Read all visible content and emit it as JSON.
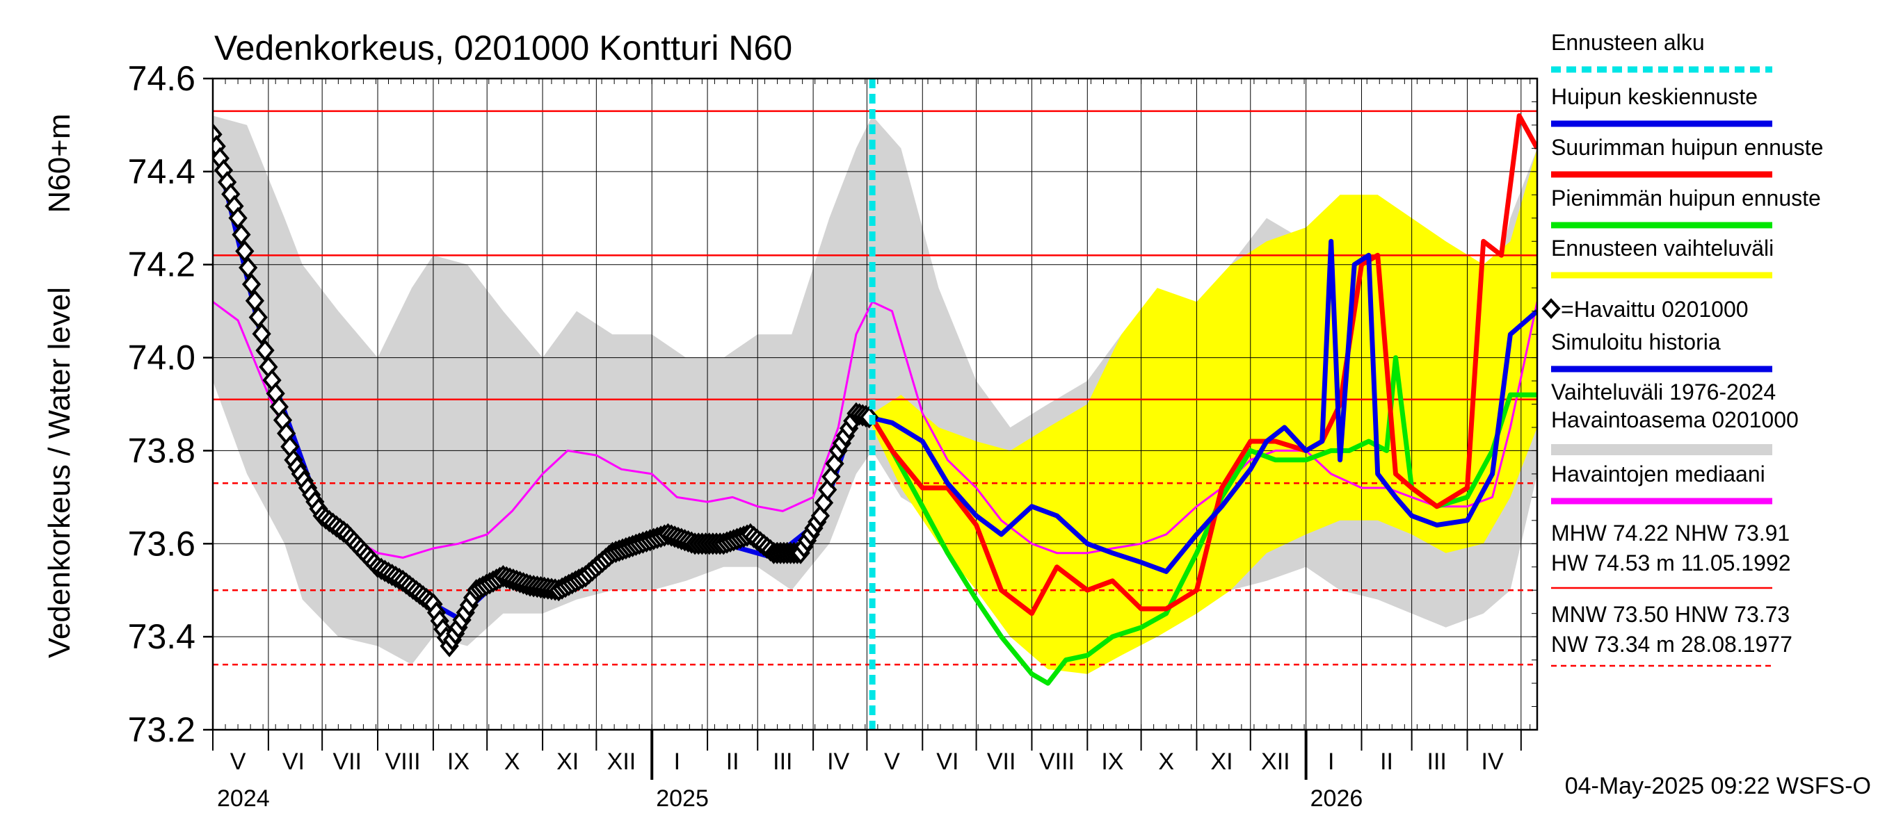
{
  "chart_data": {
    "type": "line",
    "title": "Vedenkorkeus, 0201000 Kontturi N60",
    "ylabel_main": "Vedenkorkeus / Water level",
    "ylabel_unit": "N60+m",
    "ylim": [
      73.2,
      74.6
    ],
    "yticks": [
      "73.2",
      "73.4",
      "73.6",
      "73.8",
      "74.0",
      "74.2",
      "74.4",
      "74.6"
    ],
    "x_range": [
      "2024-05-01",
      "2026-05-10"
    ],
    "month_labels": [
      {
        "label": "V",
        "date": "2024-05-15"
      },
      {
        "label": "VI",
        "date": "2024-06-15"
      },
      {
        "label": "VII",
        "date": "2024-07-15"
      },
      {
        "label": "VIII",
        "date": "2024-08-15"
      },
      {
        "label": "IX",
        "date": "2024-09-15"
      },
      {
        "label": "X",
        "date": "2024-10-15"
      },
      {
        "label": "XI",
        "date": "2024-11-15"
      },
      {
        "label": "XII",
        "date": "2024-12-15"
      },
      {
        "label": "I",
        "date": "2025-01-15"
      },
      {
        "label": "II",
        "date": "2025-02-15"
      },
      {
        "label": "III",
        "date": "2025-03-15"
      },
      {
        "label": "IV",
        "date": "2025-04-15"
      },
      {
        "label": "V",
        "date": "2025-05-15"
      },
      {
        "label": "VI",
        "date": "2025-06-15"
      },
      {
        "label": "VII",
        "date": "2025-07-15"
      },
      {
        "label": "VIII",
        "date": "2025-08-15"
      },
      {
        "label": "IX",
        "date": "2025-09-15"
      },
      {
        "label": "X",
        "date": "2025-10-15"
      },
      {
        "label": "XI",
        "date": "2025-11-15"
      },
      {
        "label": "XII",
        "date": "2025-12-15"
      },
      {
        "label": "I",
        "date": "2026-01-15"
      },
      {
        "label": "II",
        "date": "2026-02-15"
      },
      {
        "label": "III",
        "date": "2026-03-15"
      },
      {
        "label": "IV",
        "date": "2026-04-15"
      }
    ],
    "year_labels": [
      {
        "label": "2024",
        "date": "2024-05-01"
      },
      {
        "label": "2025",
        "date": "2025-01-01"
      },
      {
        "label": "2026",
        "date": "2026-01-01"
      }
    ],
    "forecast_start": "2025-05-04",
    "reference_lines": [
      {
        "name": "HW",
        "value": 74.53,
        "style": "solid"
      },
      {
        "name": "MHW",
        "value": 74.22,
        "style": "solid"
      },
      {
        "name": "NHW",
        "value": 73.91,
        "style": "solid"
      },
      {
        "name": "HNW",
        "value": 73.73,
        "style": "dashed"
      },
      {
        "name": "MNW",
        "value": 73.5,
        "style": "dashed"
      },
      {
        "name": "NW",
        "value": 73.34,
        "style": "dashed"
      }
    ],
    "history_band": {
      "x": [
        "2024-05-01",
        "2024-05-20",
        "2024-06-10",
        "2024-06-20",
        "2024-07-10",
        "2024-08-01",
        "2024-08-20",
        "2024-09-01",
        "2024-09-20",
        "2024-10-10",
        "2024-11-01",
        "2024-11-20",
        "2024-12-10",
        "2025-01-01",
        "2025-01-20",
        "2025-02-10",
        "2025-03-01",
        "2025-03-20",
        "2025-04-10",
        "2025-04-25",
        "2025-05-04",
        "2025-05-20",
        "2025-06-10",
        "2025-07-01",
        "2025-07-20",
        "2025-08-10",
        "2025-09-01",
        "2025-09-20",
        "2025-10-10",
        "2025-11-01",
        "2025-11-20",
        "2025-12-10",
        "2026-01-01",
        "2026-01-20",
        "2026-02-10",
        "2026-03-01",
        "2026-03-20",
        "2026-04-10",
        "2026-04-25",
        "2026-05-10"
      ],
      "low": [
        73.95,
        73.75,
        73.6,
        73.48,
        73.4,
        73.38,
        73.34,
        73.4,
        73.38,
        73.45,
        73.45,
        73.48,
        73.5,
        73.5,
        73.52,
        73.55,
        73.55,
        73.5,
        73.6,
        73.75,
        73.8,
        73.7,
        73.65,
        73.6,
        73.55,
        73.5,
        73.48,
        73.45,
        73.45,
        73.48,
        73.5,
        73.52,
        73.55,
        73.5,
        73.48,
        73.45,
        73.42,
        73.45,
        73.5,
        73.75
      ],
      "high": [
        74.52,
        74.5,
        74.3,
        74.2,
        74.1,
        74.0,
        74.15,
        74.22,
        74.2,
        74.1,
        74.0,
        74.1,
        74.05,
        74.05,
        74.0,
        74.0,
        74.05,
        74.05,
        74.3,
        74.45,
        74.52,
        74.45,
        74.15,
        73.95,
        73.85,
        73.9,
        73.95,
        74.05,
        74.1,
        74.05,
        74.2,
        74.3,
        74.25,
        74.15,
        74.05,
        74.0,
        73.98,
        74.05,
        74.3,
        74.45
      ]
    },
    "forecast_band": {
      "x": [
        "2025-05-04",
        "2025-05-20",
        "2025-06-10",
        "2025-07-01",
        "2025-07-20",
        "2025-08-10",
        "2025-09-01",
        "2025-09-20",
        "2025-10-10",
        "2025-11-01",
        "2025-11-20",
        "2025-12-10",
        "2026-01-01",
        "2026-01-20",
        "2026-02-10",
        "2026-03-01",
        "2026-03-20",
        "2026-04-10",
        "2026-04-25",
        "2026-05-10"
      ],
      "low": [
        73.85,
        73.72,
        73.6,
        73.5,
        73.4,
        73.33,
        73.32,
        73.36,
        73.4,
        73.45,
        73.5,
        73.58,
        73.62,
        73.65,
        73.65,
        73.62,
        73.58,
        73.6,
        73.7,
        73.85
      ],
      "high": [
        73.88,
        73.92,
        73.85,
        73.82,
        73.8,
        73.85,
        73.9,
        74.05,
        74.15,
        74.12,
        74.2,
        74.25,
        74.28,
        74.35,
        74.35,
        74.3,
        74.25,
        74.2,
        74.25,
        74.45
      ]
    },
    "series": [
      {
        "name": "=Havaittu 0201000",
        "role": "observed",
        "x": [
          "2024-05-01",
          "2024-05-15",
          "2024-06-01",
          "2024-06-15",
          "2024-07-01",
          "2024-07-15",
          "2024-08-01",
          "2024-08-15",
          "2024-09-01",
          "2024-09-10",
          "2024-09-15",
          "2024-09-25",
          "2024-10-10",
          "2024-10-25",
          "2024-11-10",
          "2024-11-25",
          "2024-12-10",
          "2024-12-25",
          "2025-01-10",
          "2025-01-25",
          "2025-02-10",
          "2025-02-25",
          "2025-03-10",
          "2025-03-25",
          "2025-04-05",
          "2025-04-15",
          "2025-04-25",
          "2025-05-04"
        ],
        "y": [
          74.48,
          74.3,
          73.98,
          73.78,
          73.66,
          73.62,
          73.55,
          73.52,
          73.47,
          73.38,
          73.42,
          73.5,
          73.53,
          73.51,
          73.5,
          73.53,
          73.58,
          73.6,
          73.62,
          73.6,
          73.6,
          73.62,
          73.58,
          73.58,
          73.66,
          73.8,
          73.88,
          73.87
        ]
      },
      {
        "name": "Simuloitu historia",
        "role": "simulated",
        "x": [
          "2024-05-01",
          "2024-06-01",
          "2024-07-01",
          "2024-08-01",
          "2024-09-01",
          "2024-09-15",
          "2024-10-10",
          "2024-11-10",
          "2024-12-10",
          "2025-01-10",
          "2025-02-10",
          "2025-03-10",
          "2025-04-05",
          "2025-04-25",
          "2025-05-04"
        ],
        "y": [
          74.48,
          73.98,
          73.66,
          73.55,
          73.47,
          73.44,
          73.53,
          73.5,
          73.58,
          73.61,
          73.6,
          73.57,
          73.65,
          73.88,
          73.87
        ]
      },
      {
        "name": "Havaintojen mediaani",
        "role": "median",
        "x": [
          "2024-05-01",
          "2024-05-15",
          "2024-06-01",
          "2024-06-15",
          "2024-07-01",
          "2024-07-15",
          "2024-08-01",
          "2024-08-15",
          "2024-09-01",
          "2024-09-15",
          "2024-10-01",
          "2024-10-15",
          "2024-11-01",
          "2024-11-15",
          "2024-12-01",
          "2024-12-15",
          "2025-01-01",
          "2025-01-15",
          "2025-02-01",
          "2025-02-15",
          "2025-03-01",
          "2025-03-15",
          "2025-04-01",
          "2025-04-15",
          "2025-04-25",
          "2025-05-04",
          "2025-05-15",
          "2025-06-01",
          "2025-06-15",
          "2025-07-01",
          "2025-07-15",
          "2025-08-01",
          "2025-08-15",
          "2025-09-01",
          "2025-09-15",
          "2025-10-01",
          "2025-10-15",
          "2025-11-01",
          "2025-11-15",
          "2025-12-01",
          "2025-12-15",
          "2026-01-01",
          "2026-01-15",
          "2026-02-01",
          "2026-02-15",
          "2026-03-01",
          "2026-03-15",
          "2026-04-01",
          "2026-04-15",
          "2026-04-25",
          "2026-05-10"
        ],
        "y": [
          74.12,
          74.08,
          73.92,
          73.8,
          73.68,
          73.62,
          73.58,
          73.57,
          73.59,
          73.6,
          73.62,
          73.67,
          73.75,
          73.8,
          73.79,
          73.76,
          73.75,
          73.7,
          73.69,
          73.7,
          73.68,
          73.67,
          73.7,
          73.85,
          74.05,
          74.12,
          74.1,
          73.88,
          73.78,
          73.72,
          73.65,
          73.6,
          73.58,
          73.58,
          73.59,
          73.6,
          73.62,
          73.68,
          73.72,
          73.78,
          73.8,
          73.8,
          73.75,
          73.72,
          73.72,
          73.7,
          73.68,
          73.68,
          73.7,
          73.85,
          74.12
        ]
      },
      {
        "name": "Huipun keskiennuste",
        "role": "forecast_mid",
        "x": [
          "2025-05-04",
          "2025-05-15",
          "2025-06-01",
          "2025-06-15",
          "2025-07-01",
          "2025-07-15",
          "2025-08-01",
          "2025-08-15",
          "2025-09-01",
          "2025-09-15",
          "2025-10-01",
          "2025-10-15",
          "2025-11-01",
          "2025-11-15",
          "2025-12-01",
          "2025-12-10",
          "2025-12-20",
          "2026-01-01",
          "2026-01-10",
          "2026-01-15",
          "2026-01-20",
          "2026-01-28",
          "2026-02-05",
          "2026-02-10",
          "2026-02-20",
          "2026-03-01",
          "2026-03-15",
          "2026-04-01",
          "2026-04-15",
          "2026-04-25",
          "2026-05-10"
        ],
        "y": [
          73.87,
          73.86,
          73.82,
          73.73,
          73.66,
          73.62,
          73.68,
          73.66,
          73.6,
          73.58,
          73.56,
          73.54,
          73.62,
          73.68,
          73.76,
          73.82,
          73.85,
          73.8,
          73.82,
          74.25,
          73.78,
          74.2,
          74.22,
          73.75,
          73.7,
          73.66,
          73.64,
          73.65,
          73.75,
          74.05,
          74.1
        ]
      },
      {
        "name": "Suurimman huipun ennuste",
        "role": "forecast_max",
        "x": [
          "2025-05-04",
          "2025-05-15",
          "2025-06-01",
          "2025-06-15",
          "2025-07-01",
          "2025-07-15",
          "2025-08-01",
          "2025-08-15",
          "2025-09-01",
          "2025-09-15",
          "2025-10-01",
          "2025-10-15",
          "2025-11-01",
          "2025-11-15",
          "2025-12-01",
          "2025-12-15",
          "2026-01-01",
          "2026-01-10",
          "2026-01-20",
          "2026-02-01",
          "2026-02-10",
          "2026-02-20",
          "2026-03-01",
          "2026-03-15",
          "2026-04-01",
          "2026-04-10",
          "2026-04-20",
          "2026-04-30",
          "2026-05-10"
        ],
        "y": [
          73.87,
          73.8,
          73.72,
          73.72,
          73.64,
          73.5,
          73.45,
          73.55,
          73.5,
          73.52,
          73.46,
          73.46,
          73.5,
          73.72,
          73.82,
          73.82,
          73.8,
          73.82,
          73.9,
          74.2,
          74.22,
          73.75,
          73.72,
          73.68,
          73.72,
          74.25,
          74.22,
          74.52,
          74.45
        ]
      },
      {
        "name": "Pienimmän huipun ennuste",
        "role": "forecast_min",
        "x": [
          "2025-05-04",
          "2025-05-15",
          "2025-06-01",
          "2025-06-15",
          "2025-07-01",
          "2025-07-15",
          "2025-08-01",
          "2025-08-10",
          "2025-08-20",
          "2025-09-01",
          "2025-09-15",
          "2025-10-01",
          "2025-10-15",
          "2025-11-01",
          "2025-11-15",
          "2025-12-01",
          "2025-12-15",
          "2026-01-01",
          "2026-01-15",
          "2026-01-25",
          "2026-02-05",
          "2026-02-15",
          "2026-02-20",
          "2026-03-01",
          "2026-03-15",
          "2026-04-01",
          "2026-04-15",
          "2026-04-25",
          "2026-05-10"
        ],
        "y": [
          73.87,
          73.8,
          73.68,
          73.58,
          73.48,
          73.4,
          73.32,
          73.3,
          73.35,
          73.36,
          73.4,
          73.42,
          73.45,
          73.58,
          73.7,
          73.8,
          73.78,
          73.78,
          73.8,
          73.8,
          73.82,
          73.8,
          74.0,
          73.72,
          73.68,
          73.7,
          73.8,
          73.92,
          73.92
        ]
      }
    ],
    "legend": [
      {
        "label": "Ennusteen alku",
        "color": "#00e6e6",
        "style": "dashed"
      },
      {
        "label": "Huipun keskiennuste",
        "color": "#0000e6",
        "style": "solid"
      },
      {
        "label": "Suurimman huipun ennuste",
        "color": "#ff0000",
        "style": "solid"
      },
      {
        "label": "Pienimmän huipun ennuste",
        "color": "#00e600",
        "style": "solid"
      },
      {
        "label": "Ennusteen vaihteluväli",
        "color": "#ffff00",
        "style": "solid"
      },
      {
        "label": "=Havaittu 0201000",
        "color": "#000000",
        "style": "marker"
      },
      {
        "label": "Simuloitu historia",
        "color": "#0000e6",
        "style": "solid"
      },
      {
        "label": "Vaihteluväli 1976-2024",
        "label2": " Havaintoasema 0201000",
        "color": "#d3d3d3",
        "style": "solid"
      },
      {
        "label": "Havaintojen mediaani",
        "color": "#ff00ff",
        "style": "solid"
      }
    ],
    "stats": [
      {
        "line": "MHW  74.22 NHW  73.91"
      },
      {
        "line": "HW  74.53 m 11.05.1992"
      },
      {
        "line": "MNW  73.50 HNW  73.73"
      },
      {
        "line": "NW  73.34 m 28.08.1977"
      }
    ],
    "footer": "04-May-2025 09:22 WSFS-O",
    "colors": {
      "history_band": "#d3d3d3",
      "forecast_band": "#ffff00",
      "observed": "#000000",
      "simulated": "#0000e6",
      "median": "#ff00ff",
      "forecast_mid": "#0000e6",
      "forecast_max": "#ff0000",
      "forecast_min": "#00e600",
      "forecast_start": "#00e6e6",
      "reference": "#ff0000"
    }
  }
}
